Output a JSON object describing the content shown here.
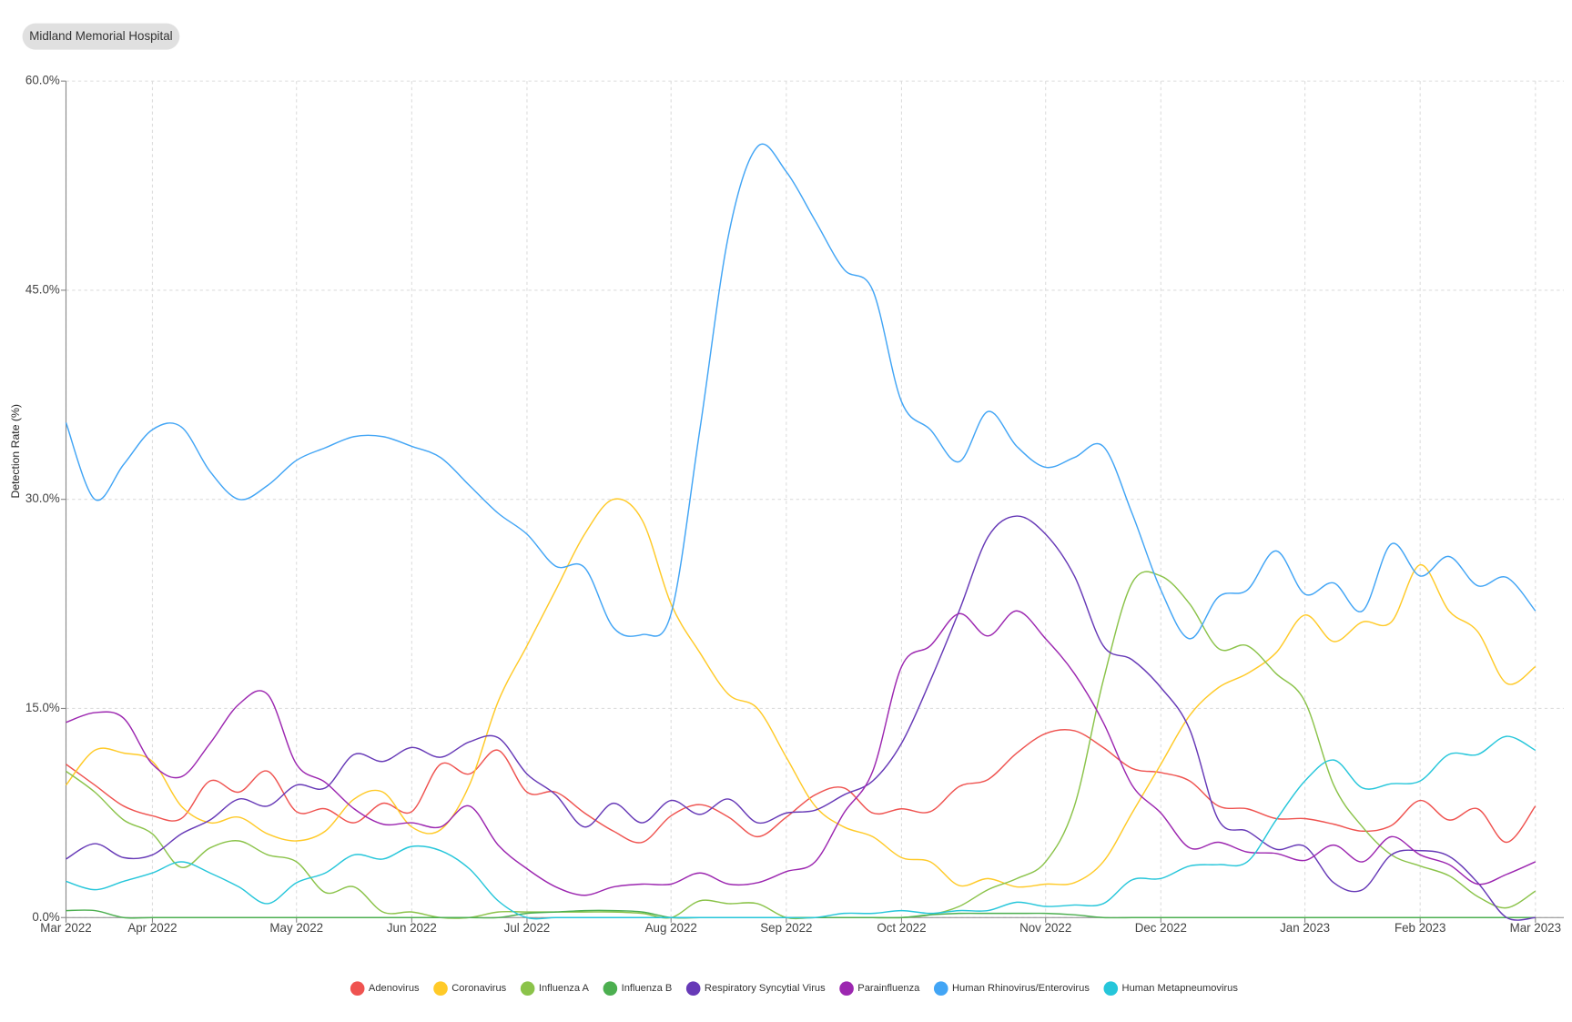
{
  "chart_data": {
    "type": "line",
    "hospital": "Midland Memorial Hospital",
    "y_label": "Detection Rate (%)",
    "categories": [
      "Mar 2022",
      null,
      null,
      "Apr 2022",
      null,
      null,
      null,
      null,
      "May 2022",
      null,
      null,
      null,
      "Jun 2022",
      null,
      null,
      null,
      "Jul 2022",
      null,
      null,
      null,
      null,
      "Aug 2022",
      null,
      null,
      null,
      "Sep 2022",
      null,
      null,
      null,
      "Oct 2022",
      null,
      null,
      null,
      null,
      "Nov 2022",
      null,
      null,
      null,
      "Dec 2022",
      null,
      null,
      null,
      null,
      "Jan 2023",
      null,
      null,
      null,
      "Feb 2023",
      null,
      null,
      null,
      "Mar 2023"
    ],
    "ylim": [
      0,
      60
    ],
    "yticks": [
      {
        "value": 0,
        "label": "0.0%"
      },
      {
        "value": 15,
        "label": "15.0%"
      },
      {
        "value": 30,
        "label": "30.0%"
      },
      {
        "value": 45,
        "label": "45.0%"
      },
      {
        "value": 60,
        "label": "60.0%"
      }
    ],
    "grid": true,
    "series": [
      {
        "name": "Adenovirus",
        "color": "#ef5350",
        "values": [
          11,
          9.5,
          8,
          7.3,
          7.1,
          9.8,
          9,
          10.5,
          7.6,
          7.8,
          6.8,
          8.2,
          7.6,
          11,
          10.3,
          12,
          9,
          9,
          7.5,
          6.2,
          5.4,
          7.3,
          8.1,
          7.2,
          5.8,
          7.2,
          8.8,
          9.3,
          7.5,
          7.8,
          7.6,
          9.4,
          9.9,
          11.8,
          13.2,
          13.4,
          12.2,
          10.7,
          10.4,
          9.8,
          8,
          7.8,
          7.1,
          7.1,
          6.7,
          6.2,
          6.6,
          8.4,
          7,
          7.8,
          5.4,
          8
        ]
      },
      {
        "name": "Coronavirus",
        "color": "#ffca28",
        "values": [
          9.5,
          12,
          11.8,
          11.2,
          8,
          6.8,
          7.2,
          6,
          5.5,
          6.2,
          8.5,
          9,
          6.5,
          6.3,
          9.5,
          15.5,
          19.5,
          23.5,
          27.5,
          30,
          28.5,
          22.5,
          19,
          16,
          15,
          11.5,
          8,
          6.5,
          5.8,
          4.3,
          4,
          2.3,
          2.8,
          2.2,
          2.4,
          2.5,
          4,
          7.5,
          11,
          14.5,
          16.5,
          17.5,
          19,
          21.7,
          19.8,
          21.2,
          21.2,
          25.3,
          22,
          20.5,
          16.8,
          18
        ]
      },
      {
        "name": "Influenza A",
        "color": "#8bc34a",
        "values": [
          10.5,
          9,
          7,
          6,
          3.6,
          5,
          5.5,
          4.5,
          4,
          1.8,
          2.2,
          0.4,
          0.4,
          0,
          0,
          0.4,
          0.4,
          0.4,
          0.4,
          0.4,
          0.3,
          0,
          1.2,
          1,
          1,
          0,
          0,
          0,
          0,
          0,
          0.2,
          0.8,
          2,
          2.8,
          4,
          8,
          17,
          24,
          24.5,
          22.5,
          19.3,
          19.5,
          17.5,
          15.5,
          9.5,
          6.5,
          4.5,
          3.7,
          3,
          1.5,
          0.7,
          1.9
        ]
      },
      {
        "name": "Influenza B",
        "color": "#4caf50",
        "values": [
          0.5,
          0.5,
          0,
          0,
          0,
          0,
          0,
          0,
          0,
          0,
          0,
          0,
          0,
          0,
          0,
          0,
          0.3,
          0.4,
          0.5,
          0.5,
          0.4,
          0,
          0,
          0,
          0,
          0,
          0,
          0,
          0,
          0,
          0.2,
          0.3,
          0.3,
          0.3,
          0.3,
          0.2,
          0,
          0,
          0,
          0,
          0,
          0,
          0,
          0,
          0,
          0,
          0,
          0,
          0,
          0,
          0,
          0
        ]
      },
      {
        "name": "Respiratory Syncytial Virus",
        "color": "#673ab7",
        "values": [
          4.2,
          5.3,
          4.3,
          4.5,
          6,
          7,
          8.5,
          8,
          9.5,
          9.3,
          11.7,
          11.2,
          12.2,
          11.5,
          12.6,
          12.9,
          10.3,
          8.8,
          6.5,
          8.2,
          6.8,
          8.4,
          7.4,
          8.5,
          6.8,
          7.5,
          7.7,
          8.8,
          9.8,
          12.5,
          17,
          22,
          27.3,
          28.8,
          27.5,
          24.5,
          19.5,
          18.5,
          16.5,
          13.5,
          7,
          6.2,
          4.9,
          5.1,
          2.5,
          2,
          4.5,
          4.8,
          4.4,
          2.5,
          0,
          0
        ]
      },
      {
        "name": "Parainfluenza",
        "color": "#9c27b0",
        "values": [
          14,
          14.7,
          14.3,
          11,
          10.1,
          12.5,
          15.3,
          16,
          11,
          9.7,
          7.8,
          6.7,
          6.8,
          6.5,
          8,
          5.2,
          3.5,
          2.2,
          1.6,
          2.2,
          2.4,
          2.4,
          3.2,
          2.4,
          2.5,
          3.3,
          4,
          7.5,
          10.5,
          18,
          19.5,
          21.8,
          20.2,
          22,
          20,
          17.5,
          14,
          9.5,
          7.5,
          5,
          5.4,
          4.7,
          4.6,
          4.1,
          5.2,
          4,
          5.8,
          4.5,
          3.8,
          2.4,
          3.1,
          4
        ]
      },
      {
        "name": "Human Rhinovirus/Enterovirus",
        "color": "#42a5f5",
        "values": [
          35.5,
          30,
          32.5,
          35,
          35.2,
          32,
          30,
          31,
          32.8,
          33.7,
          34.5,
          34.5,
          33.8,
          33,
          31,
          29,
          27.5,
          25.2,
          25.1,
          20.8,
          20.3,
          21.8,
          35,
          49,
          55.3,
          53.5,
          50,
          46.5,
          45,
          37,
          35,
          32.7,
          36.3,
          33.8,
          32.3,
          33,
          33.8,
          29,
          23.5,
          20,
          23,
          23.5,
          26.3,
          23.2,
          24,
          22,
          26.8,
          24.5,
          25.9,
          23.8,
          24.4,
          22
        ]
      },
      {
        "name": "Human Metapneumovirus",
        "color": "#26c6da",
        "values": [
          2.6,
          2,
          2.6,
          3.2,
          4,
          3.2,
          2.2,
          1,
          2.5,
          3.2,
          4.5,
          4.2,
          5.1,
          4.8,
          3.5,
          1.2,
          0,
          0,
          0,
          0,
          0,
          0,
          0,
          0,
          0,
          0,
          0,
          0.3,
          0.3,
          0.5,
          0.3,
          0.5,
          0.5,
          1.1,
          0.8,
          0.9,
          1,
          2.7,
          2.8,
          3.7,
          3.8,
          4,
          7,
          9.8,
          11.3,
          9.3,
          9.6,
          9.8,
          11.7,
          11.7,
          13,
          12
        ]
      }
    ]
  }
}
